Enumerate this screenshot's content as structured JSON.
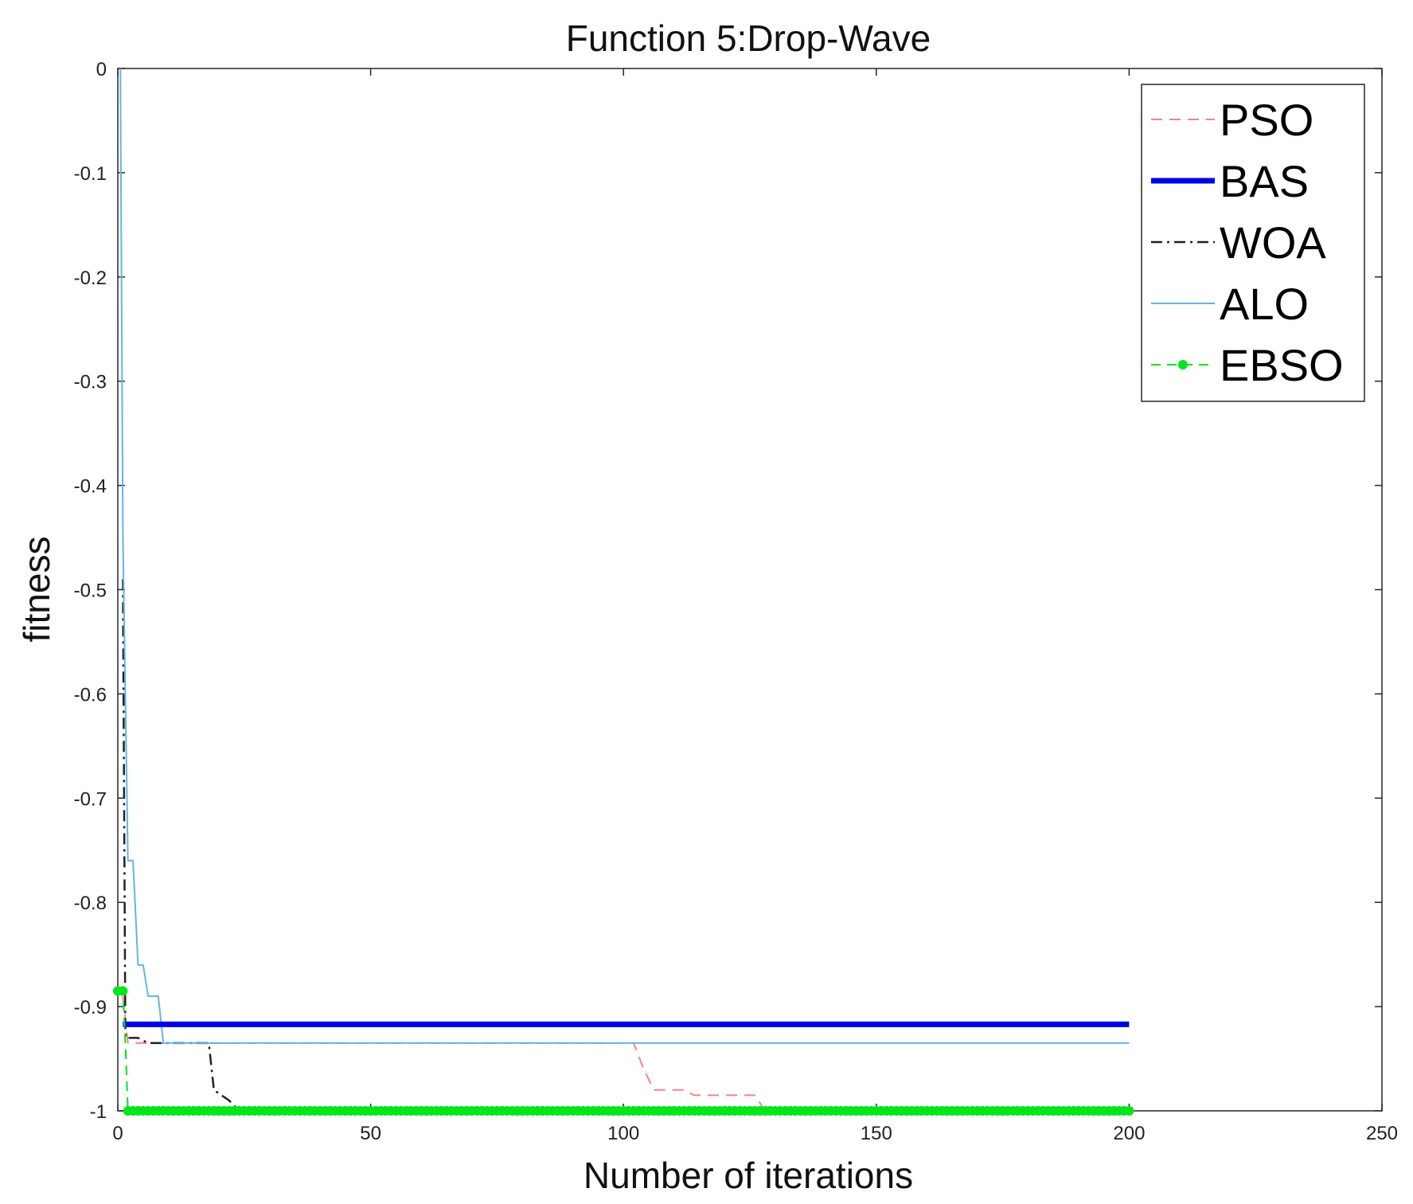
{
  "chart_data": {
    "type": "line",
    "title": "Function 5:Drop-Wave",
    "xlabel": "Number of iterations",
    "ylabel": "fitness",
    "xlim": [
      0,
      250
    ],
    "ylim": [
      -1,
      0
    ],
    "xticks": [
      0,
      50,
      100,
      150,
      200,
      250
    ],
    "yticks": [
      0,
      -0.1,
      -0.2,
      -0.3,
      -0.4,
      -0.5,
      -0.6,
      -0.7,
      -0.8,
      -0.9,
      -1
    ],
    "xtick_labels": [
      "0",
      "50",
      "100",
      "150",
      "200",
      "250"
    ],
    "ytick_labels": [
      "0",
      "-0.1",
      "-0.2",
      "-0.3",
      "-0.4",
      "-0.5",
      "-0.6",
      "-0.7",
      "-0.8",
      "-0.9",
      "-1"
    ],
    "grid": false,
    "legend_position": "top-right",
    "series": [
      {
        "name": "PSO",
        "color": "#ff8080",
        "style": "dashed",
        "x": [
          1,
          2,
          3,
          102,
          104,
          106,
          112,
          114,
          126,
          128,
          200
        ],
        "y": [
          -0.89,
          -0.935,
          -0.935,
          -0.935,
          -0.96,
          -0.98,
          -0.98,
          -0.985,
          -0.985,
          -1.0,
          -1.0
        ]
      },
      {
        "name": "BAS",
        "color": "#0000e6",
        "style": "solid-thick",
        "x": [
          1,
          200
        ],
        "y": [
          -0.917,
          -0.917
        ]
      },
      {
        "name": "WOA",
        "color": "#222222",
        "style": "dashdot",
        "x": [
          1,
          1.5,
          2,
          4,
          6,
          8,
          18,
          19,
          22,
          24,
          200
        ],
        "y": [
          -0.49,
          -0.93,
          -0.93,
          -0.93,
          -0.935,
          -0.935,
          -0.935,
          -0.98,
          -0.99,
          -1.0,
          -1.0
        ]
      },
      {
        "name": "ALO",
        "color": "#66b3e6",
        "style": "solid",
        "x": [
          0.5,
          1,
          2,
          3,
          4,
          5,
          6,
          7,
          8,
          9,
          200
        ],
        "y": [
          0.0,
          -0.45,
          -0.76,
          -0.76,
          -0.86,
          -0.86,
          -0.89,
          -0.89,
          -0.89,
          -0.935,
          -0.935
        ]
      },
      {
        "name": "EBSO",
        "color": "#00e61a",
        "style": "dashed-marker",
        "x": [
          0,
          1,
          1.5,
          2,
          200
        ],
        "y": [
          -0.885,
          -0.885,
          -0.935,
          -1.0,
          -1.0
        ]
      }
    ]
  }
}
